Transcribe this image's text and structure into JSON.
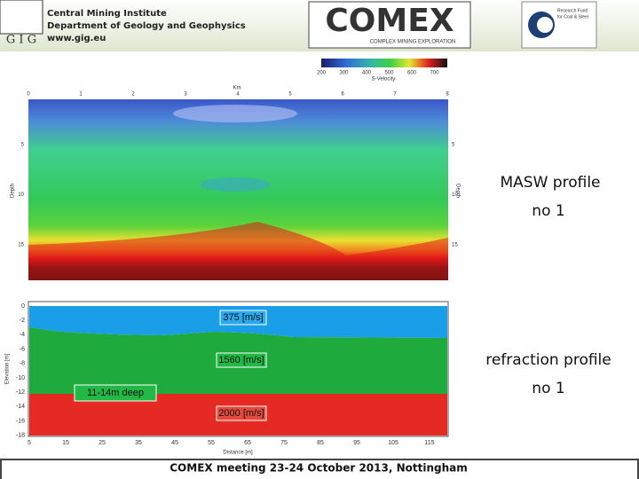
{
  "header": {
    "institute": [
      "Central Mining Institute",
      "Department of Geology and Geophysics",
      "www.gig.eu"
    ],
    "gig_logo": "G I G",
    "comex_logo": "COMEX",
    "comex_subtitle": "COMPLEX MINING EXPLORATION",
    "fund_logo": [
      "Research Fund",
      "for Coal & Steel"
    ]
  },
  "masw": {
    "colorbar_ticks": [
      "200",
      "300",
      "400",
      "500",
      "600",
      "700"
    ],
    "colorbar_label": "S-Velocity",
    "x_label": "Km",
    "x_ticks": [
      "0",
      "1",
      "2",
      "3",
      "4",
      "5",
      "6",
      "7",
      "8"
    ],
    "y_label": "Depth",
    "y_ticks": [
      "5",
      "10",
      "15"
    ],
    "caption": [
      "MASW profile",
      "no 1"
    ]
  },
  "refraction": {
    "y_label": "Elevation [m]",
    "y_ticks": [
      "0",
      "-2",
      "-4",
      "-6",
      "-8",
      "-10",
      "-12",
      "-14",
      "-16",
      "-18"
    ],
    "x_label": "Distance [m]",
    "x_ticks": [
      "5",
      "15",
      "25",
      "35",
      "45",
      "55",
      "65",
      "75",
      "85",
      "95",
      "105",
      "115"
    ],
    "layers": [
      "375 [m/s]",
      "1560 [m/s]",
      "2000 [m/s]"
    ],
    "depth_note": "11-14m deep",
    "caption": [
      "refraction profile",
      "no 1"
    ]
  },
  "footer": "COMEX meeting 23-24 October 2013, Nottingham"
}
